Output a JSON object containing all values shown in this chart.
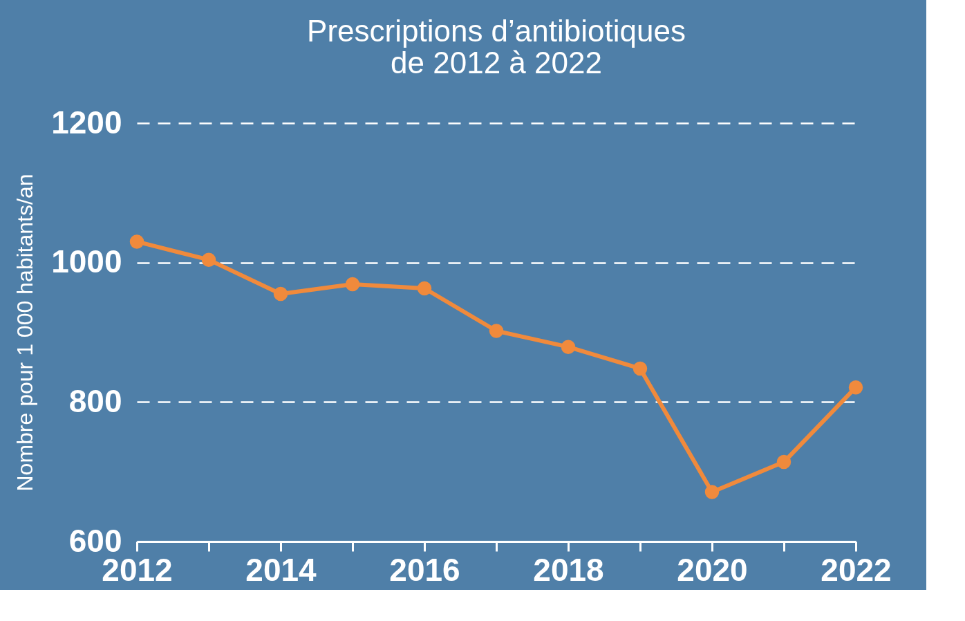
{
  "chart_data": {
    "type": "line",
    "title": "Prescriptions d’antibiotiques\nde 2012 à 2022",
    "ylabel": "Nombre pour 1 000 habitants/an",
    "x": [
      2012,
      2013,
      2014,
      2015,
      2016,
      2017,
      2018,
      2019,
      2020,
      2021,
      2022
    ],
    "series": [
      {
        "color": "#f08a3c",
        "values": [
          1030,
          1004,
          955,
          969,
          963,
          902,
          879,
          848,
          671,
          714,
          821
        ]
      }
    ],
    "xlim": [
      2012,
      2022
    ],
    "xticks": [
      2012,
      {
        "value": 2013,
        "label": null
      },
      2014,
      {
        "value": 2015,
        "label": null
      },
      2016,
      {
        "value": 2017,
        "label": null
      },
      2018,
      {
        "value": 2019,
        "label": null
      },
      2020,
      {
        "value": 2021,
        "label": null
      },
      2022
    ],
    "ylim": [
      600,
      1200
    ],
    "yticks": [
      600,
      800,
      1000,
      1200
    ],
    "grid": "y",
    "marker": "circle",
    "line_style": "solid"
  }
}
